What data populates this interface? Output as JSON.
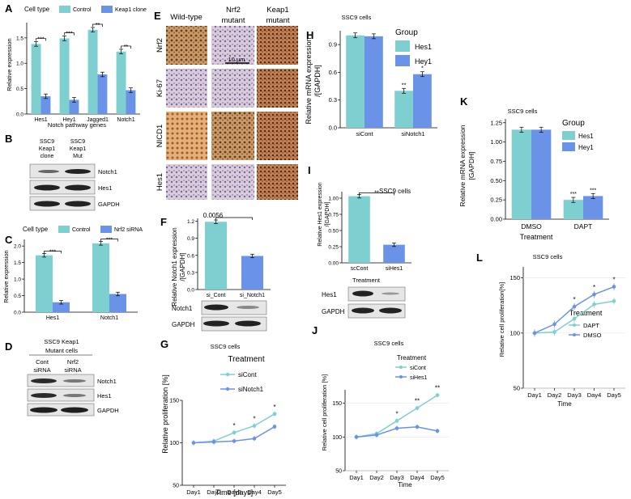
{
  "colors": {
    "teal": "#7ecfcf",
    "blue": "#6a93e8",
    "blot_bg": "#e6e6e6",
    "band": "#2a2a2a"
  },
  "panel_letters": {
    "A": "A",
    "B": "B",
    "C": "C",
    "D": "D",
    "E": "E",
    "F": "F",
    "G": "G",
    "H": "H",
    "I": "I",
    "J": "J",
    "K": "K",
    "L": "L"
  },
  "panelA": {
    "legend_title": "Cell type",
    "legend": [
      "Control",
      "Keap1 clone"
    ],
    "ylabel": "Relative expression",
    "xlabel": "Notch pathway genes",
    "sig": [
      "***",
      "***",
      "**",
      "**"
    ]
  },
  "panelB": {
    "col1": [
      "SSC9",
      "Keap1",
      "clone"
    ],
    "col2": [
      "SSC9",
      "Keap1",
      "Mut"
    ],
    "rows": [
      "Notch1",
      "Hes1",
      "GAPDH"
    ]
  },
  "panelC": {
    "legend_title": "Cell type",
    "legend": [
      "Control",
      "Nrf2 siRNA"
    ],
    "ylabel": "Relative expression",
    "sig": [
      "***",
      "***"
    ]
  },
  "panelD": {
    "header1": "SSC9  Keap1",
    "header2": "Mutant cells",
    "col1": [
      "Cont",
      "siRNA"
    ],
    "col2": [
      "Nrf2",
      "siRNA"
    ],
    "rows": [
      "Notch1",
      "Hes1",
      "GAPDH"
    ]
  },
  "panelE": {
    "cols": [
      "Wild-type",
      "Nrf2 mutant",
      "Keap1 mutant"
    ],
    "rows": [
      "Nrf2",
      "Ki-67",
      "NICD1",
      "Hes1"
    ],
    "scale": "10 μm"
  },
  "panelF": {
    "ylabel1": "Relative Notch1 expression",
    "ylabel2": "/[GAPDH]",
    "pval": "0.0056",
    "rows": [
      "Notch1",
      "GAPDH"
    ]
  },
  "panelG": {
    "title": "SSC9 cells",
    "legend_title": "Treatment",
    "legend": [
      "siCont",
      "siNotch1"
    ],
    "ylabel": "Relative proliferation [%]",
    "xlabel": "Time [days]",
    "sig": [
      "*",
      "*",
      "*"
    ]
  },
  "panelH": {
    "title": "SSC9 cells",
    "legend_title": "Group",
    "legend": [
      "Hes1",
      "Hey1"
    ],
    "ylabel1": "Relative mRNA expression",
    "ylabel2": "/[GAPDH]",
    "sig": [
      "**",
      "*"
    ]
  },
  "panelI": {
    "title": "SSC9 cells",
    "ylabel": "Relative Hes1 expression",
    "ylabel2": "/[GAPDH]",
    "xlabel": "Treatment",
    "sig": "**",
    "rows": [
      "Hes1",
      "GAPDH"
    ]
  },
  "panelJ": {
    "title": "SSC9 cells",
    "legend_title": "Treatment",
    "legend": [
      "siCont",
      "siHes1"
    ],
    "ylabel": "Relative cell proliferation [%]",
    "xlabel": "Time",
    "sig": [
      "*",
      "**",
      "**"
    ]
  },
  "panelK": {
    "title": "SSC9 cells",
    "legend_title": "Group",
    "legend": [
      "Hes1",
      "Hey1"
    ],
    "ylabel1": "Relative mRNA expression",
    "ylabel2": "[GAPDH]",
    "xlabel": "Treatment",
    "sig": [
      "***",
      "***"
    ]
  },
  "panelL": {
    "title": "SSC9 cells",
    "legend_title": "Treatment",
    "legend": [
      "DAPT",
      "DMSO"
    ],
    "ylabel": "Relative cell proliferation[%]",
    "xlabel": "Time",
    "sig": [
      "*",
      "*",
      "*"
    ]
  },
  "chart_data": [
    {
      "id": "A",
      "type": "bar",
      "categories": [
        "Hes1",
        "Hey1",
        "Jagged1",
        "Notch1"
      ],
      "series": [
        {
          "name": "Control",
          "values": [
            1.38,
            1.49,
            1.66,
            1.23
          ]
        },
        {
          "name": "Keap1 clone",
          "values": [
            0.35,
            0.28,
            0.78,
            0.47
          ]
        }
      ],
      "ylim": [
        0,
        1.8
      ],
      "yticks": [
        "0.0",
        "0.5",
        "1.0",
        "1.5"
      ]
    },
    {
      "id": "C",
      "type": "bar",
      "categories": [
        "Hes1",
        "Notch1"
      ],
      "series": [
        {
          "name": "Control",
          "values": [
            1.72,
            2.08
          ]
        },
        {
          "name": "Nrf2 siRNA",
          "values": [
            0.3,
            0.55
          ]
        }
      ],
      "ylim": [
        0,
        2.2
      ],
      "yticks": [
        "0.0",
        "0.5",
        "1.0",
        "1.5",
        "2.0"
      ]
    },
    {
      "id": "F",
      "type": "bar",
      "categories": [
        "si_Cont",
        "si_Notch1"
      ],
      "series": [
        {
          "values": [
            1.19,
            0.59
          ]
        }
      ],
      "ylim": [
        0,
        1.25
      ],
      "yticks": [
        "0.0",
        "0.3",
        "0.6",
        "0.9",
        "1.2"
      ]
    },
    {
      "id": "H",
      "type": "bar",
      "categories": [
        "siCont",
        "siNotch1"
      ],
      "series": [
        {
          "name": "Hes1",
          "values": [
            1.0,
            0.4
          ]
        },
        {
          "name": "Hey1",
          "values": [
            0.99,
            0.58
          ]
        }
      ],
      "ylim": [
        0,
        1.05
      ],
      "yticks": [
        "0.0",
        "0.3",
        "0.6",
        "0.9"
      ]
    },
    {
      "id": "I",
      "type": "bar",
      "categories": [
        "scCont",
        "siHes1"
      ],
      "series": [
        {
          "values": [
            1.03,
            0.28
          ]
        }
      ],
      "ylim": [
        0,
        1.1
      ],
      "yticks": [
        "0.00",
        "0.25",
        "0.50",
        "0.75",
        "1.00"
      ]
    },
    {
      "id": "K",
      "type": "bar",
      "categories": [
        "DMSO",
        "DAPT"
      ],
      "series": [
        {
          "name": "Hes1",
          "values": [
            1.16,
            0.25
          ]
        },
        {
          "name": "Hey1",
          "values": [
            1.16,
            0.3
          ]
        }
      ],
      "ylim": [
        0,
        1.3
      ],
      "yticks": [
        "0.00",
        "0.25",
        "0.50",
        "0.75",
        "1.00",
        "1.25"
      ]
    },
    {
      "id": "G",
      "type": "line",
      "x": [
        "Day1",
        "Day2",
        "Day3",
        "Day4",
        "Day5"
      ],
      "series": [
        {
          "name": "siCont",
          "values": [
            100,
            102,
            112,
            120,
            134
          ]
        },
        {
          "name": "siNotch1",
          "values": [
            100,
            101,
            102,
            105,
            119
          ]
        }
      ],
      "ylim": [
        50,
        150
      ],
      "yticks": [
        "50",
        "100",
        "150"
      ]
    },
    {
      "id": "J",
      "type": "line",
      "x": [
        "Day1",
        "Day2",
        "Day3",
        "Day4",
        "Day5"
      ],
      "series": [
        {
          "name": "siCont",
          "values": [
            100,
            105,
            124,
            143,
            162
          ]
        },
        {
          "name": "siHes1",
          "values": [
            100,
            103,
            113,
            115,
            109
          ]
        }
      ],
      "ylim": [
        50,
        170
      ],
      "yticks": [
        "50",
        "100",
        "150"
      ]
    },
    {
      "id": "L",
      "type": "line",
      "x": [
        "Day1",
        "Day2",
        "Day3",
        "Day4",
        "Day5"
      ],
      "series": [
        {
          "name": "DAPT",
          "values": [
            100,
            101,
            113,
            126,
            129
          ]
        },
        {
          "name": "DMSO",
          "values": [
            100,
            108,
            124,
            135,
            142
          ]
        }
      ],
      "ylim": [
        50,
        160
      ],
      "yticks": [
        "50",
        "100",
        "150"
      ]
    }
  ]
}
